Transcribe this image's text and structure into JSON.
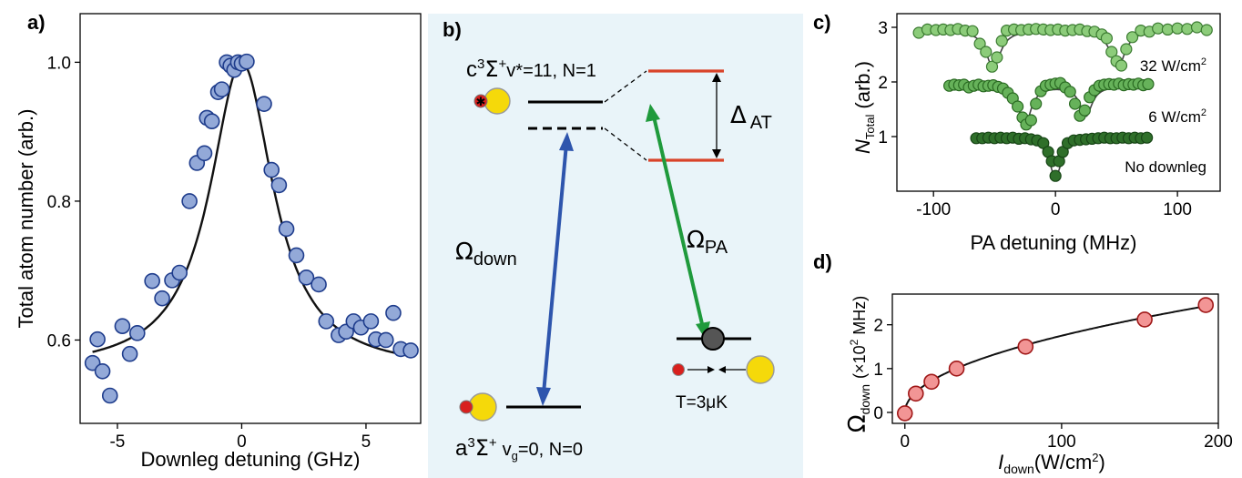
{
  "panels": {
    "a": "a)",
    "b": "b)",
    "c": "c)",
    "d": "d)"
  },
  "chart_data": [
    {
      "panel": "a",
      "type": "scatter",
      "xlabel": "Downleg detuning (GHz)",
      "ylabel": "Total atom number (arb.)",
      "xlim": [
        -6.5,
        7.2
      ],
      "ylim": [
        0.48,
        1.07
      ],
      "xticks": [
        -5,
        0,
        5
      ],
      "yticks": [
        0.6,
        0.8,
        1.0
      ],
      "xticklabels": [
        "-5",
        "0",
        "5"
      ],
      "yticklabels": [
        "0.6",
        "0.8",
        "1.0"
      ],
      "colors": {
        "marker": "#93a9d8",
        "edge": "#1e3c8c"
      },
      "fit": {
        "kind": "lorentzian",
        "baseline": 0.555,
        "amplitude": 0.445,
        "center": 0.0,
        "hwhm": 1.55
      },
      "x": [
        -6.0,
        -5.8,
        -5.6,
        -5.3,
        -4.8,
        -4.5,
        -4.2,
        -3.6,
        -3.2,
        -2.8,
        -2.5,
        -2.1,
        -1.8,
        -1.5,
        -1.4,
        -1.2,
        -0.95,
        -0.8,
        -0.6,
        -0.45,
        -0.3,
        -0.15,
        0.0,
        0.2,
        0.9,
        1.2,
        1.5,
        1.8,
        2.2,
        2.6,
        3.1,
        3.4,
        3.9,
        4.2,
        4.5,
        4.8,
        5.2,
        5.4,
        5.8,
        6.1,
        6.4,
        6.8
      ],
      "y": [
        0.567,
        0.601,
        0.555,
        0.52,
        0.62,
        0.58,
        0.61,
        0.685,
        0.66,
        0.686,
        0.697,
        0.8,
        0.855,
        0.869,
        0.92,
        0.915,
        0.957,
        0.961,
        1.0,
        0.995,
        0.989,
        1.0,
        0.998,
        1.001,
        0.94,
        0.845,
        0.823,
        0.76,
        0.722,
        0.69,
        0.68,
        0.627,
        0.607,
        0.612,
        0.627,
        0.618,
        0.627,
        0.601,
        0.6,
        0.639,
        0.587,
        0.585
      ]
    },
    {
      "panel": "c",
      "type": "scatter",
      "xlabel": "PA detuning (MHz)",
      "ylabel": "N",
      "ylabel_sub": "Total",
      "ylabel_unit": "(arb.)",
      "xlim": [
        -130,
        135
      ],
      "ylim": [
        0,
        3.25
      ],
      "xticks": [
        -100,
        0,
        100
      ],
      "yticks": [
        1,
        2,
        3
      ],
      "xticklabels": [
        "-100",
        "0",
        "100"
      ],
      "yticklabels": [
        "1",
        "2",
        "3"
      ],
      "series": [
        {
          "name": "32 W/cm²",
          "name_main": "32 W/cm",
          "name_sup": "2",
          "color": "#8ccc7a",
          "edge": "#3a7a30",
          "fit": {
            "base": 2.95,
            "dips": [
              [
                -51,
                0.7,
                7
              ],
              [
                51,
                0.7,
                7
              ]
            ]
          },
          "x": [
            -112,
            -105,
            -98,
            -92,
            -86,
            -80,
            -74,
            -68,
            -62,
            -57,
            -52,
            -48,
            -44,
            -40,
            -34,
            -28,
            -22,
            -16,
            -10,
            -4,
            2,
            8,
            14,
            20,
            26,
            32,
            38,
            42,
            46,
            50,
            54,
            58,
            63,
            70,
            77,
            84,
            92,
            100,
            108,
            116,
            124
          ],
          "y": [
            2.9,
            2.96,
            2.95,
            2.96,
            2.95,
            2.97,
            2.94,
            2.93,
            2.7,
            2.55,
            2.28,
            2.45,
            2.75,
            2.94,
            2.96,
            2.95,
            2.96,
            2.97,
            2.96,
            2.95,
            2.96,
            2.94,
            2.95,
            2.96,
            2.93,
            2.92,
            2.87,
            2.8,
            2.55,
            2.38,
            2.3,
            2.6,
            2.82,
            2.94,
            2.92,
            2.98,
            2.96,
            2.98,
            2.97,
            3.0,
            2.95
          ]
        },
        {
          "name": "6 W/cm²",
          "name_main": "6 W/cm",
          "name_sup": "2",
          "color": "#66b25a",
          "edge": "#2a6a22",
          "fit": {
            "base": 1.93,
            "dips": [
              [
                -25,
                0.72,
                6
              ],
              [
                25,
                0.55,
                6
              ]
            ]
          },
          "x": [
            -87,
            -83,
            -79,
            -75,
            -71,
            -67,
            -63,
            -59,
            -55,
            -51,
            -47,
            -43,
            -39,
            -35,
            -31,
            -27,
            -24,
            -20,
            -16,
            -12,
            -8,
            -4,
            0,
            4,
            8,
            12,
            16,
            20,
            24,
            28,
            32,
            36,
            40,
            44,
            48,
            52,
            56,
            60,
            64,
            68,
            72,
            76
          ],
          "y": [
            1.93,
            1.95,
            1.94,
            1.95,
            1.9,
            1.93,
            1.95,
            1.92,
            1.93,
            1.94,
            1.91,
            1.88,
            1.8,
            1.7,
            1.55,
            1.35,
            1.22,
            1.3,
            1.6,
            1.83,
            1.93,
            1.95,
            1.97,
            1.98,
            1.9,
            1.82,
            1.6,
            1.38,
            1.48,
            1.72,
            1.85,
            1.93,
            1.95,
            1.96,
            1.95,
            1.97,
            1.94,
            1.96,
            1.95,
            1.97,
            1.94,
            1.96
          ]
        },
        {
          "name": "No downleg",
          "color": "#2f6f2a",
          "edge": "#174516",
          "fit": {
            "base": 0.97,
            "dips": [
              [
                0,
                0.72,
                6
              ]
            ]
          },
          "x": [
            -65,
            -60,
            -55,
            -50,
            -45,
            -40,
            -35,
            -30,
            -25,
            -20,
            -15,
            -10,
            -6,
            -3,
            0,
            3,
            6,
            10,
            15,
            20,
            25,
            30,
            35,
            40,
            45,
            50,
            55,
            60,
            65,
            70,
            75
          ],
          "y": [
            0.97,
            0.97,
            0.98,
            0.97,
            0.98,
            0.97,
            0.98,
            0.96,
            0.97,
            0.95,
            0.93,
            0.88,
            0.72,
            0.55,
            0.28,
            0.55,
            0.72,
            0.88,
            0.93,
            0.94,
            0.95,
            0.96,
            0.97,
            0.98,
            0.97,
            0.97,
            0.98,
            0.97,
            0.98,
            0.97,
            0.98
          ]
        }
      ]
    },
    {
      "panel": "d",
      "type": "scatter",
      "xlabel_main": "I",
      "xlabel_sub": "down",
      "xlabel_unit": "(W/cm",
      "xlabel_sup": "2",
      "xlabel_close": ")",
      "ylabel_main": "Ω",
      "ylabel_sub": "down",
      "ylabel_unit": "(×10",
      "ylabel_sup": "2",
      "ylabel_unit2": " MHz)",
      "xlim": [
        -8,
        200
      ],
      "ylim": [
        -0.25,
        2.7
      ],
      "xticks": [
        0,
        100,
        200
      ],
      "yticks": [
        0,
        1,
        2
      ],
      "xticklabels": [
        "0",
        "100",
        "200"
      ],
      "yticklabels": [
        "0",
        "1",
        "2"
      ],
      "colors": {
        "marker": "#f29595",
        "edge": "#a01818"
      },
      "fit": {
        "kind": "sqrt",
        "coef": 0.175
      },
      "x": [
        0,
        7,
        17,
        33,
        77,
        153,
        192
      ],
      "y": [
        -0.02,
        0.43,
        0.7,
        1.0,
        1.5,
        2.12,
        2.45
      ]
    }
  ],
  "diagram": {
    "upper_state": {
      "letter": "c",
      "sup": "3",
      "sigma": "Σ",
      "plus": "+",
      "rest": "v*=11, N=1"
    },
    "lower_state": {
      "letter": "a",
      "sup": "3",
      "sigma": "Σ",
      "plus": "+",
      "v": "v",
      "vsub": "g",
      "rest": "=0, N=0"
    },
    "omega_down": {
      "sym": "Ω",
      "sub": "down"
    },
    "omega_pa": {
      "sym": "Ω",
      "sub": "PA"
    },
    "delta_at": {
      "sym": "Δ",
      "sub": "AT"
    },
    "temperature": "T=3μK",
    "colors": {
      "background": "#e9f4f9",
      "down_arrow": "#2e55ad",
      "pa_arrow": "#1f9a3c",
      "split_levels": "#d9432a",
      "atom_large": "#f5d90a",
      "atom_small": "#d8201e",
      "molecule": "#555555"
    }
  }
}
